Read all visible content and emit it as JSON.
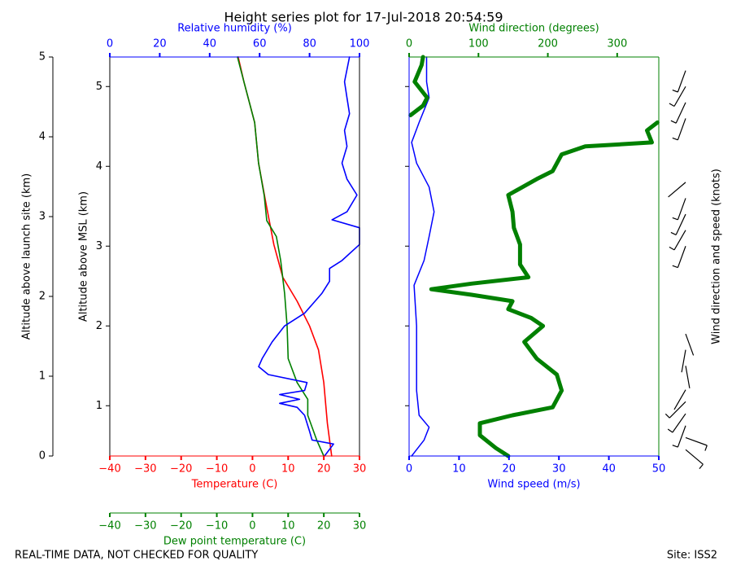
{
  "title": "Height series plot for 17-Jul-2018 20:54:59",
  "footer_left": "REAL-TIME DATA, NOT CHECKED FOR QUALITY",
  "footer_right": "Site: ISS2",
  "chart_data": [
    {
      "type": "profile",
      "x_label": "Temperature (C)",
      "xlim": [
        -40,
        30
      ],
      "xticks": [
        {
          "value": -40,
          "label": "−40"
        },
        {
          "value": -30,
          "label": "−30"
        },
        {
          "value": -20,
          "label": "−20"
        },
        {
          "value": -10,
          "label": "−10"
        },
        0,
        10,
        20,
        30
      ],
      "x2_label": "Relative humidity (%)",
      "x2lim": [
        0,
        100
      ],
      "x2ticks": [
        0,
        20,
        40,
        60,
        80,
        100
      ],
      "x3_label": "Dew point temperature (C)",
      "x3lim": [
        -40,
        30
      ],
      "x3ticks": [
        {
          "value": -40,
          "label": "−40"
        },
        {
          "value": -30,
          "label": "−30"
        },
        {
          "value": -20,
          "label": "−20"
        },
        {
          "value": -10,
          "label": "−10"
        },
        0,
        10,
        20,
        30
      ],
      "y_label": "Altitude above MSL (km)",
      "ylim": [
        0.37,
        5.37
      ],
      "yticks": [
        1,
        2,
        3,
        4,
        5
      ],
      "y2_label": "Altitude above launch site (km)",
      "y2lim": [
        0,
        5
      ],
      "y2ticks": [
        0,
        1,
        2,
        3,
        4,
        5
      ],
      "series": [
        {
          "axis": "x",
          "color": "#ff0000",
          "altitude": [
            0.37,
            0.78,
            1.29,
            1.7,
            2.0,
            2.31,
            2.61,
            3.02,
            3.53,
            4.04,
            4.55,
            5.06,
            5.37
          ],
          "values": [
            22.2,
            21,
            20,
            18.5,
            16,
            12.5,
            8.5,
            6,
            3.8,
            1.7,
            0.6,
            -2.4,
            -4
          ]
        },
        {
          "axis": "x3",
          "color": "#008000",
          "altitude": [
            0.37,
            0.57,
            0.88,
            1.08,
            1.29,
            1.59,
            2.0,
            2.41,
            2.82,
            3.12,
            3.32,
            3.63,
            4.04,
            4.55,
            5.06,
            5.37
          ],
          "values": [
            20,
            18,
            15.5,
            15.5,
            12.5,
            10,
            9.7,
            9,
            7.9,
            6.7,
            4,
            3.3,
            1.7,
            0.6,
            -2.4,
            -4.2
          ]
        },
        {
          "axis": "x2",
          "color": "#0000ff",
          "altitude": [
            0.37,
            0.52,
            0.57,
            0.68,
            0.78,
            0.88,
            0.98,
            1.03,
            1.08,
            1.14,
            1.19,
            1.29,
            1.39,
            1.49,
            1.59,
            1.8,
            2.0,
            2.16,
            2.41,
            2.56,
            2.72,
            2.82,
            3.02,
            3.23,
            3.33,
            3.43,
            3.64,
            3.84,
            4.04,
            4.25,
            4.45,
            4.66,
            4.86,
            5.06,
            5.37
          ],
          "values": [
            86,
            89.6,
            81,
            80,
            79,
            78,
            75,
            68,
            76,
            68,
            78,
            79,
            63.5,
            59.6,
            61,
            65,
            70,
            78,
            85,
            88,
            88,
            93,
            100,
            100,
            89,
            95,
            99,
            95,
            93,
            95,
            94,
            96,
            95,
            94,
            96
          ]
        }
      ]
    },
    {
      "type": "profile",
      "x_label": "Wind speed (m/s)",
      "xlim": [
        0,
        50
      ],
      "xticks": [
        0,
        10,
        20,
        30,
        40,
        50
      ],
      "x2_label": "Wind direction (degrees)",
      "x2lim": [
        0,
        360
      ],
      "x2ticks": [
        0,
        100,
        200,
        300
      ],
      "ylim": [
        0.37,
        5.37
      ],
      "yticks": [
        1,
        2,
        3,
        4,
        5
      ],
      "series": [
        {
          "axis": "x",
          "color": "#0000ff",
          "width": 1.5,
          "altitude": [
            0.37,
            0.57,
            0.73,
            0.88,
            1.19,
            1.59,
            2.0,
            2.51,
            2.82,
            3.12,
            3.43,
            3.74,
            4.04,
            4.3,
            4.55,
            4.86,
            5.06,
            5.37
          ],
          "values": [
            0.5,
            3,
            4,
            2,
            1.5,
            1.5,
            1.5,
            1,
            3,
            4,
            5,
            4,
            1.5,
            0.5,
            2,
            4,
            3.5,
            3.5
          ]
        },
        {
          "axis": "x2",
          "color": "#008000",
          "width": 5,
          "altitude": [
            0.37,
            0.47,
            0.63,
            0.78,
            0.88,
            0.98,
            1.19,
            1.39,
            1.59,
            1.8,
            2.0,
            2.1,
            2.21,
            2.31,
            2.39,
            2.46,
            2.53,
            2.61,
            2.77,
            3.02,
            3.23,
            3.43,
            3.64,
            3.84,
            3.94,
            4.15,
            4.25,
            4.3,
            4.45,
            4.55,
            4.6,
            4.64,
            4.76,
            4.86,
            5.06,
            5.27,
            5.37
          ],
          "values": [
            143,
            125,
            102,
            102,
            149,
            207,
            220,
            213,
            184,
            166,
            193,
            176,
            143,
            149,
            90,
            32,
            90,
            172,
            160,
            160,
            151,
            149,
            143,
            184,
            207,
            220,
            254,
            350,
            343,
            358,
            null,
            2,
            20,
            26,
            8,
            18,
            20
          ]
        }
      ],
      "barbs_label": "Wind direction and speed (knots)",
      "barbs": {
        "altitude": [
          0.45,
          0.6,
          0.75,
          0.9,
          1.05,
          1.2,
          1.5,
          1.7,
          1.9,
          3.0,
          3.2,
          3.4,
          3.6,
          3.8,
          4.6,
          4.8,
          5.0,
          5.2
        ],
        "speed": [
          7,
          9,
          8,
          6,
          5,
          4,
          3,
          3,
          4,
          5,
          6,
          7,
          6,
          4,
          5,
          6,
          7,
          6
        ],
        "direction": [
          130,
          110,
          200,
          215,
          225,
          210,
          170,
          190,
          160,
          200,
          210,
          205,
          200,
          230,
          200,
          205,
          210,
          200
        ]
      }
    }
  ]
}
